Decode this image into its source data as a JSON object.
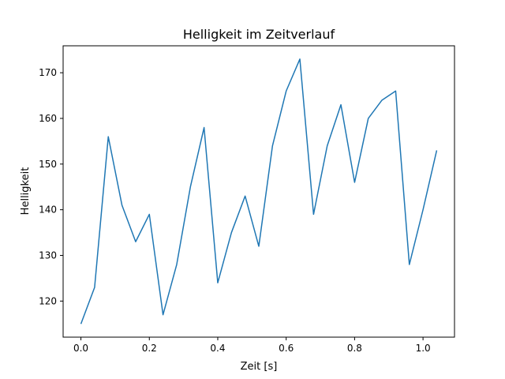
{
  "chart_data": {
    "type": "line",
    "title": "Helligkeit im Zeitverlauf",
    "xlabel": "Zeit [s]",
    "ylabel": "Helligkeit",
    "xlim": [
      -0.052,
      1.092
    ],
    "ylim": [
      112.1,
      175.9
    ],
    "xticks": [
      0.0,
      0.2,
      0.4,
      0.6,
      0.8,
      1.0
    ],
    "xtick_labels": [
      "0.0",
      "0.2",
      "0.4",
      "0.6",
      "0.8",
      "1.0"
    ],
    "yticks": [
      120,
      130,
      140,
      150,
      160,
      170
    ],
    "ytick_labels": [
      "120",
      "130",
      "140",
      "150",
      "160",
      "170"
    ],
    "grid": false,
    "legend": "none",
    "series": [
      {
        "color": "#1f77b4",
        "x": [
          0.0,
          0.04,
          0.08,
          0.12,
          0.16,
          0.2,
          0.24,
          0.28,
          0.32,
          0.36,
          0.4,
          0.44,
          0.48,
          0.52,
          0.56,
          0.6,
          0.64,
          0.68,
          0.72,
          0.76,
          0.8,
          0.84,
          0.88,
          0.92,
          0.96,
          1.0,
          1.04
        ],
        "y": [
          115,
          123,
          156,
          141,
          133,
          139,
          117,
          128,
          145,
          158,
          124,
          135,
          143,
          132,
          154,
          166,
          173,
          139,
          154,
          163,
          146,
          160,
          164,
          166,
          128,
          140,
          153
        ]
      }
    ]
  }
}
